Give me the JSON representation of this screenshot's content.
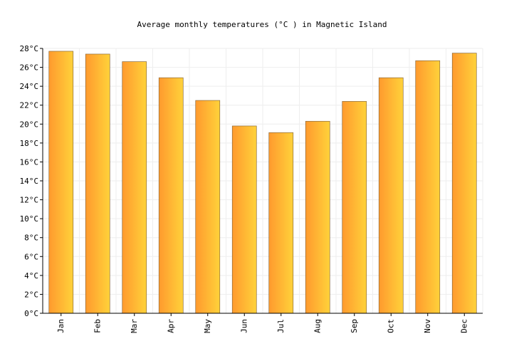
{
  "chart_data": {
    "type": "bar",
    "title": "Average monthly temperatures (°C ) in Magnetic Island",
    "xlabel": "",
    "ylabel": "",
    "categories": [
      "Jan",
      "Feb",
      "Mar",
      "Apr",
      "May",
      "Jun",
      "Jul",
      "Aug",
      "Sep",
      "Oct",
      "Nov",
      "Dec"
    ],
    "values": [
      27.7,
      27.4,
      26.6,
      24.9,
      22.5,
      19.8,
      19.1,
      20.3,
      22.4,
      24.9,
      26.7,
      27.5
    ],
    "ylim": [
      0,
      28
    ],
    "y_ticks": [
      0,
      2,
      4,
      6,
      8,
      10,
      12,
      14,
      16,
      18,
      20,
      22,
      24,
      26,
      28
    ],
    "y_tick_suffix": "°C",
    "grid": true,
    "legend": "none",
    "colors": {
      "bar_gradient_start": "#ff9a2e",
      "bar_gradient_end": "#ffd23a",
      "bar_stroke": "#8a6a3a",
      "grid": "#eeeeee",
      "axis": "#000000"
    }
  }
}
